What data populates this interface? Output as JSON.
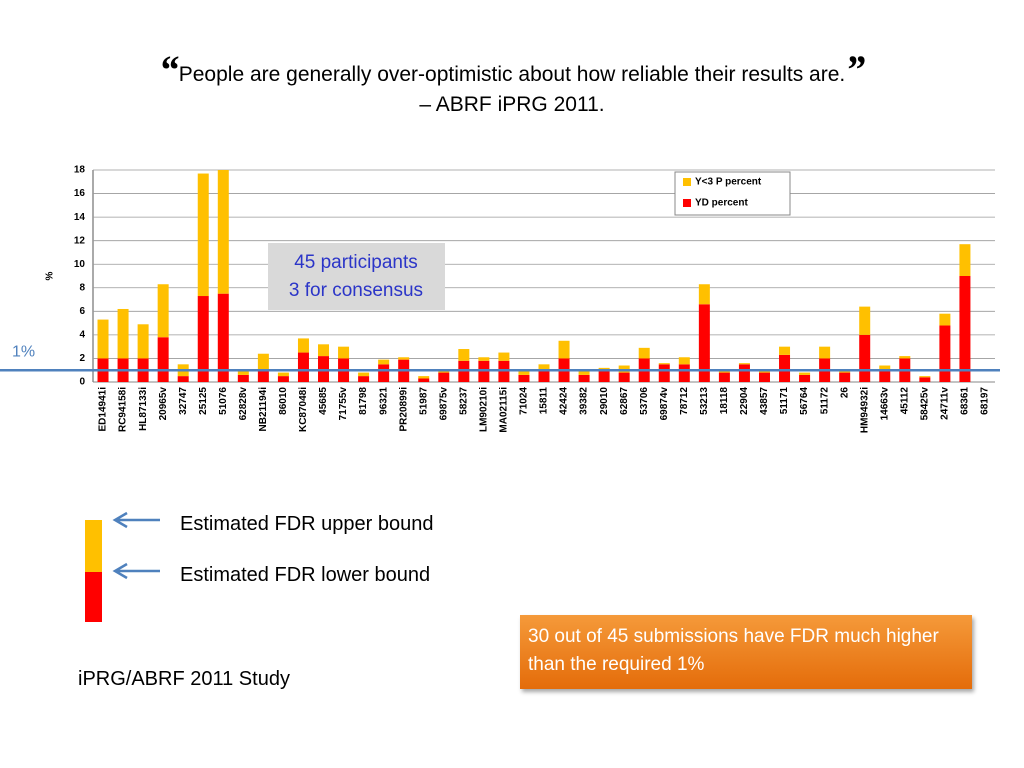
{
  "title": {
    "open_quote": "“",
    "text": "People are generally over-optimistic about how reliable their results are.",
    "close_quote": "”",
    "subtitle": "– ABRF iPRG 2011."
  },
  "chart_data": {
    "type": "bar",
    "stacked": true,
    "categories": [
      "ED14941i",
      "RC94158i",
      "HL87133i",
      "20965v",
      "32747",
      "25125",
      "51076",
      "62828v",
      "NB21194i",
      "86010",
      "KC87048i",
      "45685",
      "71755v",
      "81798",
      "96321",
      "PR20899i",
      "51987",
      "69875v",
      "58237",
      "LM90210i",
      "MA02115i",
      "71024",
      "15811",
      "42424",
      "39382",
      "29010",
      "62867",
      "53706",
      "69874v",
      "78712",
      "53213",
      "18118",
      "22904",
      "43857",
      "51171",
      "56764",
      "51172",
      "26",
      "HM94932i",
      "14663v",
      "45112",
      "58425v",
      "24711v",
      "68361",
      "68197"
    ],
    "series": [
      {
        "name": "YD percent",
        "color": "#ff0000",
        "values": [
          2.0,
          2.0,
          2.0,
          3.8,
          0.5,
          7.3,
          7.5,
          0.6,
          0.9,
          0.5,
          2.5,
          2.2,
          2.0,
          0.5,
          1.5,
          1.9,
          0.3,
          0.8,
          1.8,
          1.8,
          1.8,
          0.6,
          0.9,
          2.0,
          0.6,
          0.9,
          0.8,
          2.0,
          1.5,
          1.5,
          6.6,
          0.8,
          1.5,
          0.8,
          2.3,
          0.6,
          2.0,
          0.8,
          4.0,
          0.9,
          2.0,
          0.4,
          4.8,
          9.0,
          0
        ]
      },
      {
        "name": "Y<3 P percent",
        "color": "#ffc000",
        "values": [
          3.3,
          4.2,
          2.9,
          4.5,
          1.0,
          10.4,
          10.5,
          0.3,
          1.5,
          0.3,
          1.2,
          1.0,
          1.0,
          0.3,
          0.4,
          0.2,
          0.2,
          0.1,
          1.0,
          0.3,
          0.7,
          0.3,
          0.6,
          1.5,
          0.5,
          0.3,
          0.6,
          0.9,
          0.1,
          0.6,
          1.7,
          0.1,
          0.1,
          0.1,
          0.7,
          0.2,
          1.0,
          0.1,
          2.4,
          0.5,
          0.2,
          0.1,
          1.0,
          2.7,
          0
        ]
      }
    ],
    "ylabel": "%",
    "ylim": [
      0,
      18
    ],
    "yticks": [
      0,
      2,
      4,
      6,
      8,
      10,
      12,
      14,
      16,
      18
    ],
    "grid": true,
    "legend": "top-right",
    "annotation": [
      "45 participants",
      "3 for consensus"
    ],
    "threshold": {
      "value": 1,
      "label": "1%"
    }
  },
  "legend_key": {
    "upper": "Estimated FDR upper bound",
    "lower": "Estimated FDR lower bound"
  },
  "callout": "30 out of 45 submissions have FDR much higher than the required 1%",
  "footer": "iPRG/ABRF 2011 Study"
}
